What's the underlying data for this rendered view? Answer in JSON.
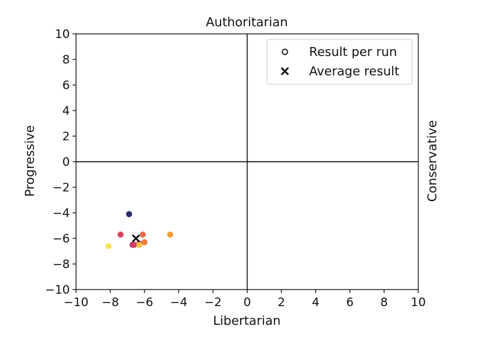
{
  "chart_data": {
    "type": "scatter",
    "title": "Authoritarian",
    "xlabel": "Libertarian",
    "ylabel": "Progressive",
    "right_label": "Conservative",
    "xlim": [
      -10,
      10
    ],
    "ylim": [
      -10,
      10
    ],
    "xticks": [
      -10,
      -8,
      -6,
      -4,
      -2,
      0,
      2,
      4,
      6,
      8,
      10
    ],
    "yticks": [
      -10,
      -8,
      -6,
      -4,
      -2,
      0,
      2,
      4,
      6,
      8,
      10
    ],
    "tick_labels": [
      "−10",
      "−8",
      "−6",
      "−4",
      "−2",
      "0",
      "2",
      "4",
      "6",
      "8",
      "10"
    ],
    "legend": {
      "placement": "top-right",
      "entries": [
        {
          "label": "Result per run",
          "marker": "circle-open"
        },
        {
          "label": "Average result",
          "marker": "x"
        }
      ]
    },
    "points": [
      {
        "x": -6.9,
        "y": -4.1,
        "color": "#2b2a6b"
      },
      {
        "x": -7.4,
        "y": -5.7,
        "color": "#d8455f"
      },
      {
        "x": -6.1,
        "y": -5.7,
        "color": "#ea6a47"
      },
      {
        "x": -4.5,
        "y": -5.7,
        "color": "#f39c36"
      },
      {
        "x": -6.0,
        "y": -6.3,
        "color": "#f17d3c"
      },
      {
        "x": -6.3,
        "y": -6.4,
        "color": "#c9406b"
      },
      {
        "x": -6.7,
        "y": -6.5,
        "color": "#b6376f"
      },
      {
        "x": -6.6,
        "y": -6.5,
        "color": "#d04064"
      },
      {
        "x": -6.3,
        "y": -6.5,
        "color": "#f7c33e"
      },
      {
        "x": -8.1,
        "y": -6.6,
        "color": "#f6e55d"
      }
    ],
    "average": {
      "x": -6.5,
      "y": -6.0,
      "color": "#111111"
    },
    "grid": false
  }
}
